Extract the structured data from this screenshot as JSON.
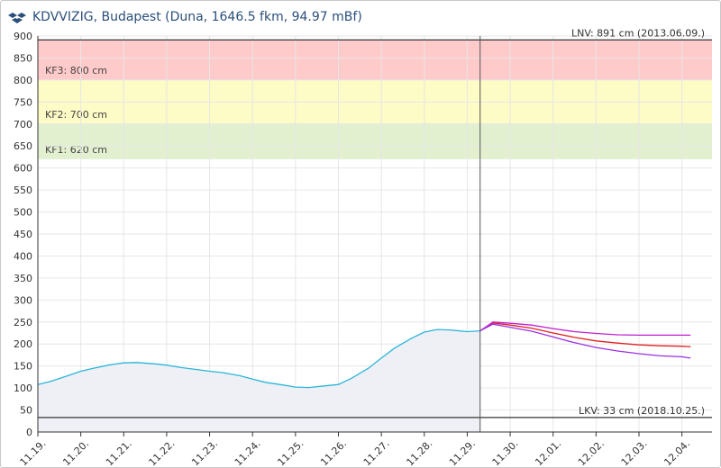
{
  "chart_data": {
    "type": "line",
    "title": "KDVVIZIG, Budapest (Duna, 1646.5 fkm, 94.97 mBf)",
    "xlabel": "",
    "ylabel": "",
    "ylim": [
      0,
      900
    ],
    "yticks": [
      0,
      50,
      100,
      150,
      200,
      250,
      300,
      350,
      400,
      450,
      500,
      550,
      600,
      650,
      700,
      750,
      800,
      850,
      900
    ],
    "x_tick_labels": [
      "11.19.",
      "11.20.",
      "11.21.",
      "11.22.",
      "11.23.",
      "11.24.",
      "11.25.",
      "11.26.",
      "11.27.",
      "11.28.",
      "11.29.",
      "11.30.",
      "12.01.",
      "12.02.",
      "12.03.",
      "12.04."
    ],
    "xlim": [
      0,
      15.7
    ],
    "grid": true,
    "now_marker_x": 10.3,
    "bands": [
      {
        "from": 620,
        "to": 700,
        "color": "#e2f0d0",
        "label": "KF1: 620 cm"
      },
      {
        "from": 700,
        "to": 800,
        "color": "#fdfbc6",
        "label": "KF2: 700 cm"
      },
      {
        "from": 800,
        "to": 891,
        "color": "#ffcaca",
        "label": "KF3: 800 cm"
      }
    ],
    "reference_lines": [
      {
        "value": 891,
        "label": "LNV: 891 cm (2013.06.09.)",
        "color": "#333333"
      },
      {
        "value": 33,
        "label": "LKV: 33 cm (2018.10.25.)",
        "color": "#333333"
      }
    ],
    "series": [
      {
        "color": "#2bb5d8",
        "fill": "#eef0f6",
        "x": [
          0,
          0.3,
          0.7,
          1.0,
          1.3,
          1.7,
          2.0,
          2.3,
          2.7,
          3.0,
          3.3,
          3.7,
          4.0,
          4.3,
          4.7,
          5.0,
          5.3,
          5.7,
          6.0,
          6.3,
          6.7,
          7.0,
          7.3,
          7.7,
          8.0,
          8.3,
          8.7,
          9.0,
          9.3,
          9.6,
          10.0,
          10.3
        ],
        "values": [
          108,
          115,
          128,
          138,
          145,
          153,
          157,
          158,
          155,
          152,
          147,
          142,
          138,
          135,
          128,
          120,
          113,
          107,
          102,
          101,
          105,
          108,
          122,
          145,
          168,
          190,
          213,
          227,
          233,
          232,
          228,
          230
        ]
      },
      {
        "color": "#e02020",
        "x": [
          10.3,
          10.6,
          11.0,
          11.5,
          12.0,
          12.5,
          13.0,
          13.5,
          14.0,
          14.5,
          15.0,
          15.2
        ],
        "values": [
          230,
          248,
          243,
          236,
          225,
          215,
          207,
          202,
          198,
          196,
          195,
          194
        ]
      },
      {
        "color": "#c020d0",
        "x": [
          10.3,
          10.6,
          11.0,
          11.5,
          12.0,
          12.5,
          13.0,
          13.5,
          14.0,
          14.5,
          15.0,
          15.2
        ],
        "values": [
          230,
          250,
          247,
          243,
          235,
          228,
          224,
          221,
          220,
          220,
          220,
          220
        ]
      },
      {
        "color": "#9b30e0",
        "x": [
          10.3,
          10.6,
          11.0,
          11.5,
          12.0,
          12.5,
          13.0,
          13.5,
          14.0,
          14.5,
          15.0,
          15.2
        ],
        "values": [
          230,
          245,
          238,
          229,
          216,
          203,
          192,
          184,
          178,
          173,
          171,
          168
        ]
      }
    ]
  },
  "colors": {
    "grid": "#e6e6e6",
    "axis": "#333333",
    "title": "#2a4f7a",
    "logo": "#2a4f7a"
  },
  "logo_icon": "kdvvizig-logo-icon"
}
